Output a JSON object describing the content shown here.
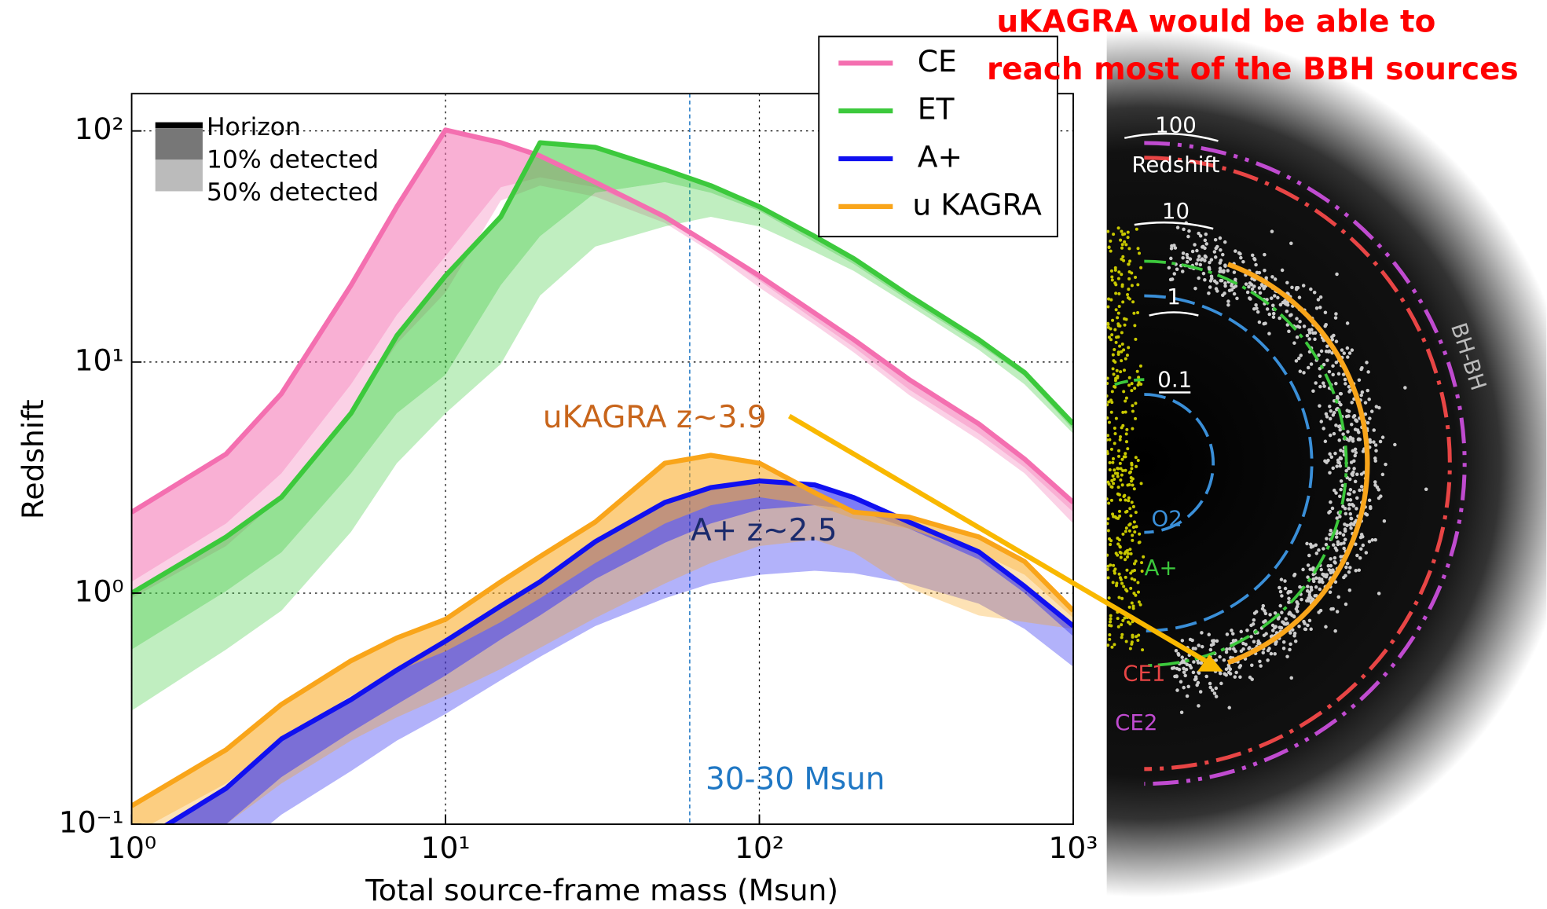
{
  "chart_data": {
    "type": "line",
    "title": [
      "uKAGRA would be able to",
      "reach most of the BBH sources"
    ],
    "xlabel": "Total source-frame mass (Msun)",
    "ylabel": "Redshift",
    "xscale": "log",
    "yscale": "log",
    "grid": true,
    "legend": "upper right",
    "xlim": [
      1,
      1000
    ],
    "ylim": [
      0.1,
      145
    ],
    "xticks": [
      {
        "value": 1,
        "label": "10⁰"
      },
      {
        "value": 10,
        "label": "10¹"
      },
      {
        "value": 100,
        "label": "10²"
      },
      {
        "value": 1000,
        "label": "10³"
      }
    ],
    "yticks": [
      {
        "value": 0.1,
        "label": "10⁻¹"
      },
      {
        "value": 1,
        "label": "10⁰"
      },
      {
        "value": 10,
        "label": "10¹"
      },
      {
        "value": 100,
        "label": "10²"
      }
    ],
    "x": [
      1,
      2,
      3,
      5,
      7,
      10,
      15,
      20,
      30,
      50,
      70,
      100,
      150,
      200,
      300,
      500,
      700,
      1000
    ],
    "band_legend": [
      "Horizon",
      "10% detected",
      "50% detected"
    ],
    "series": [
      {
        "name": "CE",
        "color": "#f46fb0",
        "values": [
          2.24,
          4.0,
          7.3,
          21.5,
          47,
          101,
          89,
          78,
          60,
          42.5,
          32,
          23.6,
          16.3,
          12.5,
          8.4,
          5.4,
          3.8,
          2.47
        ],
        "detected_10": [
          1.12,
          2.0,
          3.3,
          8.0,
          16,
          28.7,
          57,
          63,
          57,
          42.5,
          31.6,
          22.5,
          15.2,
          11.6,
          7.6,
          4.9,
          3.5,
          2.24
        ],
        "detected_50": [
          0.95,
          1.6,
          2.6,
          6,
          12,
          20,
          50,
          58,
          52,
          40,
          30,
          21,
          14.5,
          11,
          7.2,
          4.6,
          3.3,
          2.0
        ]
      },
      {
        "name": "ET",
        "color": "#3cc93c",
        "values": [
          1.0,
          1.75,
          2.6,
          6.0,
          13,
          23.6,
          42.5,
          89,
          85,
          68,
          58,
          47,
          35,
          28,
          19.4,
          12.5,
          9.0,
          5.4
        ],
        "detected_10": [
          0.57,
          1.02,
          1.5,
          3.3,
          6.0,
          8.8,
          21.5,
          35,
          54,
          60,
          54,
          45,
          33,
          26.5,
          18.4,
          11.9,
          8.7,
          5.1
        ],
        "detected_50": [
          0.31,
          0.57,
          0.84,
          1.84,
          3.65,
          6.0,
          9.8,
          19.4,
          31.6,
          38.6,
          42.5,
          38.6,
          30,
          24.8,
          17.6,
          11.3,
          8.0,
          4.9
        ]
      },
      {
        "name": "A+",
        "color": "#1010f0",
        "values": [
          0.08,
          0.143,
          0.234,
          0.346,
          0.465,
          0.62,
          0.88,
          1.12,
          1.67,
          2.47,
          2.86,
          3.06,
          2.94,
          2.59,
          2.03,
          1.51,
          1.07,
          0.72
        ],
        "detected_10": [
          0.06,
          0.1,
          0.16,
          0.25,
          0.33,
          0.44,
          0.63,
          0.8,
          1.15,
          1.65,
          2.0,
          2.3,
          2.4,
          2.3,
          1.9,
          1.4,
          1.0,
          0.65
        ],
        "detected_50": [
          0.04,
          0.07,
          0.11,
          0.17,
          0.23,
          0.3,
          0.42,
          0.53,
          0.72,
          0.95,
          1.1,
          1.2,
          1.25,
          1.22,
          1.1,
          0.9,
          0.7,
          0.48
        ]
      },
      {
        "name": "u KAGRA",
        "color": "#f9a51a",
        "values": [
          0.12,
          0.21,
          0.33,
          0.51,
          0.64,
          0.77,
          1.12,
          1.44,
          2.03,
          3.65,
          3.95,
          3.65,
          2.72,
          2.24,
          2.13,
          1.75,
          1.37,
          0.84
        ],
        "detected_10": [
          0.09,
          0.15,
          0.23,
          0.36,
          0.46,
          0.56,
          0.75,
          0.95,
          1.35,
          2.0,
          2.4,
          2.6,
          2.4,
          2.1,
          1.9,
          1.5,
          1.2,
          0.78
        ],
        "detected_50": [
          0.06,
          0.1,
          0.15,
          0.23,
          0.29,
          0.36,
          0.47,
          0.58,
          0.78,
          1.1,
          1.35,
          1.6,
          1.7,
          1.5,
          1.05,
          0.8,
          0.75,
          0.7
        ]
      }
    ],
    "vline": {
      "x": 60,
      "color": "#1f77c4",
      "label": "30-30 Msun"
    },
    "annotations": [
      "uKAGRA z~3.9",
      "A+ z~2.5"
    ],
    "inset": {
      "labels": [
        "100",
        "Redshift",
        "10",
        "1",
        "0.1",
        "O2",
        "A+",
        "CE1",
        "CE2",
        "BH-BH"
      ]
    }
  }
}
